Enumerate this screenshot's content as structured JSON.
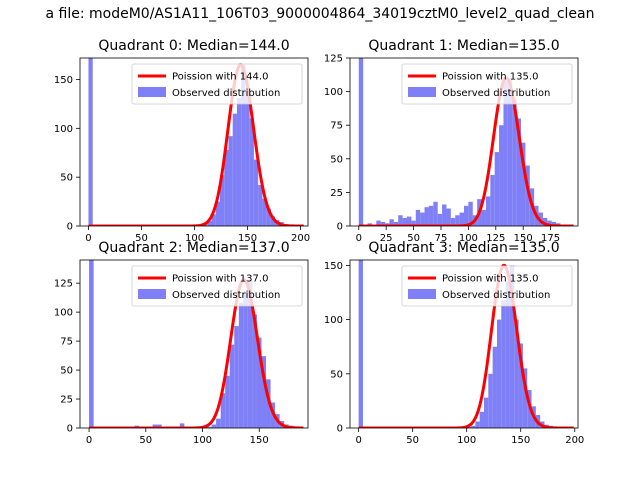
{
  "figure": {
    "title": "a file: modeM0/AS1A11_106T03_9000004864_34019cztM0_level2_quad_clean"
  },
  "colors": {
    "fit_line": "#ff0000",
    "observed_bar": "#7f7ff7"
  },
  "chart_data": [
    {
      "type": "bar",
      "title": "Quadrant 0: Median=144.0",
      "xlim": [
        -8,
        207
      ],
      "ylim": [
        0,
        172
      ],
      "xticks": [
        0,
        50,
        100,
        150,
        200
      ],
      "yticks": [
        0,
        50,
        100,
        150
      ],
      "bin_width": 4,
      "poisson_mean": 144.0,
      "legend": {
        "placement": "top-right",
        "fit_label": "Poission with 144.0",
        "bar_label": "Observed distribution"
      },
      "series": [
        {
          "name": "Observed distribution",
          "bins": [
            0,
            4,
            80,
            108,
            112,
            116,
            120,
            124,
            128,
            132,
            136,
            140,
            144,
            148,
            152,
            156,
            160,
            164,
            168,
            172,
            176,
            180,
            184,
            188
          ],
          "values": [
            172,
            1,
            1,
            2,
            5,
            12,
            25,
            52,
            78,
            92,
            115,
            131,
            165,
            140,
            110,
            68,
            42,
            28,
            18,
            10,
            6,
            4,
            2,
            1
          ]
        }
      ]
    },
    {
      "type": "bar",
      "title": "Quadrant 1: Median=135.0",
      "xlim": [
        -8,
        200
      ],
      "ylim": [
        0,
        125
      ],
      "xticks": [
        0,
        25,
        50,
        75,
        100,
        125,
        150,
        175
      ],
      "yticks": [
        0,
        25,
        50,
        75,
        100,
        125
      ],
      "bin_width": 4,
      "poisson_mean": 135.0,
      "legend": {
        "placement": "top-right",
        "fit_label": "Poission with 135.0",
        "bar_label": "Observed distribution"
      },
      "series": [
        {
          "name": "Observed distribution",
          "bins": [
            0,
            4,
            8,
            12,
            16,
            20,
            24,
            28,
            32,
            36,
            40,
            44,
            48,
            52,
            56,
            60,
            64,
            68,
            72,
            76,
            80,
            84,
            88,
            92,
            96,
            100,
            104,
            108,
            112,
            116,
            120,
            124,
            128,
            132,
            136,
            140,
            144,
            148,
            152,
            156,
            160,
            164,
            168,
            172,
            176,
            180,
            184,
            188
          ],
          "values": [
            125,
            1,
            2,
            1,
            4,
            3,
            2,
            5,
            3,
            8,
            6,
            7,
            4,
            12,
            10,
            14,
            15,
            18,
            9,
            16,
            13,
            6,
            8,
            10,
            15,
            18,
            8,
            20,
            12,
            22,
            38,
            55,
            75,
            108,
            110,
            95,
            80,
            62,
            45,
            28,
            15,
            10,
            6,
            4,
            3,
            2,
            1,
            1
          ]
        }
      ]
    },
    {
      "type": "bar",
      "title": "Quadrant 2: Median=137.0",
      "xlim": [
        -8,
        193
      ],
      "ylim": [
        0,
        145
      ],
      "xticks": [
        0,
        50,
        100,
        150
      ],
      "yticks": [
        0,
        25,
        50,
        75,
        100,
        125
      ],
      "bin_width": 4,
      "poisson_mean": 137.0,
      "legend": {
        "placement": "top-right",
        "fit_label": "Poission with 137.0",
        "bar_label": "Observed distribution"
      },
      "series": [
        {
          "name": "Observed distribution",
          "bins": [
            0,
            4,
            12,
            30,
            40,
            56,
            60,
            80,
            104,
            108,
            112,
            116,
            120,
            124,
            128,
            132,
            136,
            140,
            144,
            148,
            152,
            156,
            160,
            164,
            168,
            172,
            176,
            180
          ],
          "values": [
            145,
            1,
            1,
            1,
            2,
            3,
            3,
            4,
            1,
            3,
            8,
            30,
            45,
            72,
            88,
            108,
            118,
            128,
            98,
            78,
            62,
            42,
            22,
            12,
            6,
            3,
            2,
            1
          ]
        }
      ]
    },
    {
      "type": "bar",
      "title": "Quadrant 3: Median=135.0",
      "xlim": [
        -8,
        203
      ],
      "ylim": [
        0,
        155
      ],
      "xticks": [
        0,
        50,
        100,
        150,
        200
      ],
      "yticks": [
        0,
        50,
        100,
        150
      ],
      "bin_width": 4,
      "poisson_mean": 135.0,
      "legend": {
        "placement": "top-right",
        "fit_label": "Poission with 135.0",
        "bar_label": "Observed distribution"
      },
      "series": [
        {
          "name": "Observed distribution",
          "bins": [
            0,
            4,
            100,
            104,
            108,
            112,
            116,
            120,
            124,
            128,
            132,
            136,
            140,
            144,
            148,
            152,
            156,
            160,
            164,
            168,
            172,
            176,
            180,
            184
          ],
          "values": [
            155,
            1,
            1,
            2,
            6,
            15,
            28,
            50,
            75,
            100,
            118,
            135,
            150,
            100,
            78,
            55,
            35,
            20,
            12,
            6,
            3,
            2,
            1,
            1
          ]
        }
      ]
    }
  ]
}
